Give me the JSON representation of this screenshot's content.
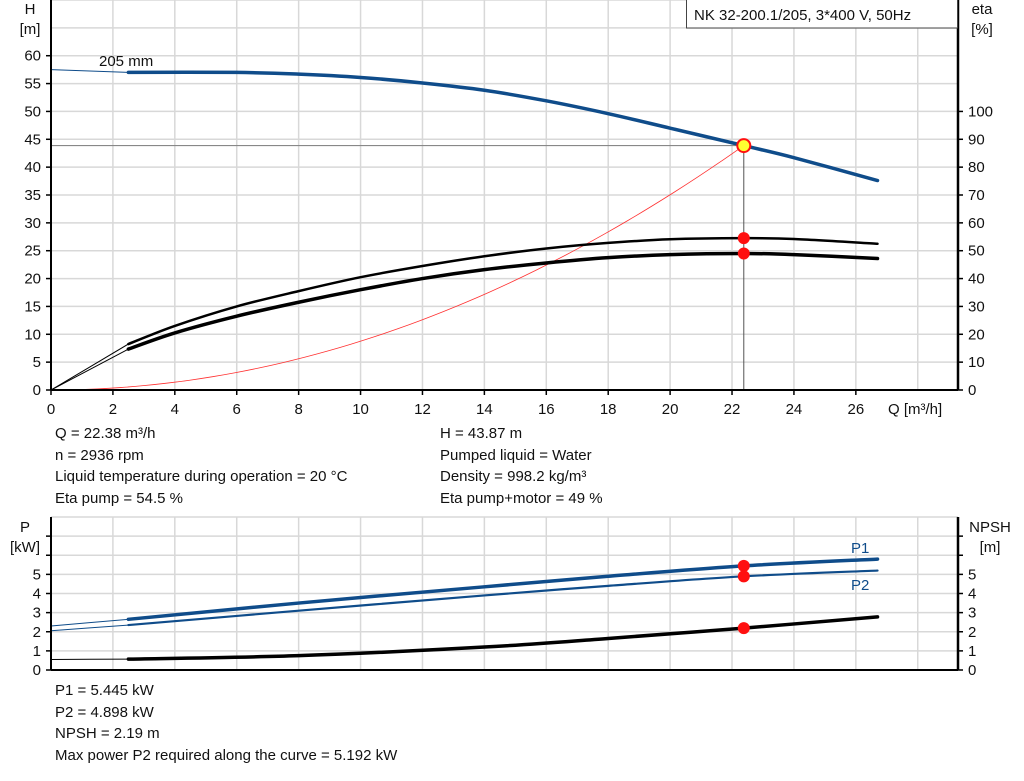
{
  "chart_data": [
    {
      "type": "line",
      "title": "NK 32-200.1/205, 3*400 V, 50Hz",
      "xlabel": "Q [m³/h]",
      "ylabel": [
        "H",
        "[m]"
      ],
      "y2label": [
        "eta",
        "[%]"
      ],
      "xlim": [
        0,
        29.3
      ],
      "ylim": [
        0,
        70
      ],
      "y2lim": [
        0,
        140
      ],
      "xticks": [
        0,
        2,
        4,
        6,
        8,
        10,
        12,
        14,
        16,
        18,
        20,
        22,
        24,
        26
      ],
      "yticks": [
        0,
        5,
        10,
        15,
        20,
        25,
        30,
        35,
        40,
        45,
        50,
        55,
        60
      ],
      "y2ticks": [
        0,
        10,
        20,
        30,
        40,
        50,
        60,
        70,
        80,
        90,
        100
      ],
      "grid": true,
      "curve_label": "205 mm",
      "series": [
        {
          "axis": "H",
          "color": "#0f4c8a",
          "x": [
            0,
            2.5,
            6,
            8,
            10,
            12,
            14,
            16,
            18,
            20,
            22.38,
            24,
            26.7
          ],
          "y": [
            57.5,
            57.0,
            57.0,
            56.7,
            56.1,
            55.1,
            53.8,
            51.9,
            49.6,
            47.0,
            43.87,
            41.7,
            37.6
          ]
        },
        {
          "axis": "eta",
          "color": "#000000",
          "x": [
            0,
            2.5,
            4,
            6,
            8,
            10,
            12,
            14,
            16,
            18,
            20,
            22.38,
            24,
            26.7
          ],
          "y": [
            0,
            16.5,
            23,
            30,
            35.5,
            40.5,
            44.5,
            48,
            50.8,
            52.8,
            54.1,
            54.5,
            54.2,
            52.5
          ]
        },
        {
          "axis": "eta",
          "color": "#000000",
          "x": [
            0,
            2.5,
            4,
            6,
            8,
            10,
            12,
            14,
            16,
            18,
            20,
            22.38,
            24,
            26.7
          ],
          "y": [
            0,
            14.7,
            20.5,
            26.5,
            31.5,
            36,
            40,
            43.2,
            45.6,
            47.5,
            48.6,
            49,
            48.6,
            47.2
          ]
        }
      ],
      "system_curve": {
        "color": "#ff3030",
        "coefficient": 0.0876
      },
      "operating_point": {
        "Q": 22.38,
        "H": 43.87,
        "eta_pump": 54.5,
        "eta_total": 49
      },
      "rated_min_Q": 2.5
    },
    {
      "type": "line",
      "ylabel": [
        "P",
        "[kW]"
      ],
      "y2label": [
        "NPSH",
        "[m]"
      ],
      "xlim": [
        0,
        29.3
      ],
      "ylim": [
        0,
        8
      ],
      "yticks": [
        0,
        1,
        2,
        3,
        4,
        5,
        6,
        7
      ],
      "ytick_labels": [
        "0",
        "1",
        "2",
        "3",
        "4",
        "5",
        "",
        ""
      ],
      "grid": true,
      "series": [
        {
          "name": "P1",
          "color": "#0f4c8a",
          "x": [
            0,
            2.5,
            8,
            14,
            18,
            22.38,
            26.7
          ],
          "y": [
            2.3,
            2.65,
            3.5,
            4.35,
            4.9,
            5.445,
            5.8
          ]
        },
        {
          "name": "P2",
          "color": "#0f4c8a",
          "x": [
            0,
            2.5,
            8,
            14,
            18,
            22.38,
            26.7
          ],
          "y": [
            2.05,
            2.35,
            3.1,
            3.9,
            4.4,
            4.898,
            5.2
          ]
        },
        {
          "name": "NPSH",
          "color": "#000000",
          "x": [
            0,
            2.5,
            8,
            14,
            18,
            22.38,
            26.7
          ],
          "y": [
            0.55,
            0.57,
            0.75,
            1.2,
            1.65,
            2.19,
            2.78
          ]
        }
      ],
      "operating_point": {
        "Q": 22.38,
        "P1": 5.445,
        "P2": 4.898,
        "NPSH": 2.19
      },
      "rated_min_Q": 2.5
    }
  ],
  "info_top_left": [
    "Q = 22.38 m³/h",
    "n = 2936 rpm",
    "Liquid temperature during operation = 20 °C",
    "Eta pump = 54.5 %"
  ],
  "info_top_right": [
    "H = 43.87 m",
    "Pumped liquid = Water",
    "Density = 998.2 kg/m³",
    "Eta pump+motor = 49 %"
  ],
  "info_bottom": [
    "P1 = 5.445 kW",
    "P2 = 4.898 kW",
    "NPSH = 2.19 m",
    "Max power P2 required along the curve = 5.192 kW"
  ]
}
